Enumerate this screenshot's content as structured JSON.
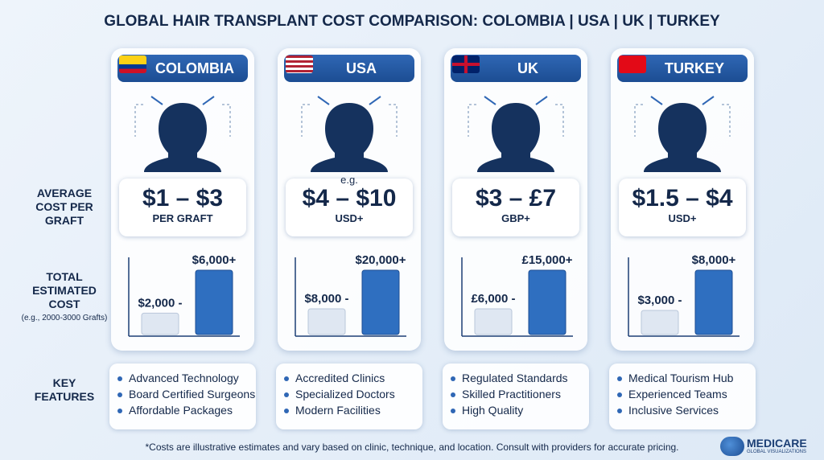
{
  "title": "GLOBAL HAIR TRANSPLANT COST COMPARISON: COLOMBIA | USA | UK | TURKEY",
  "row_labels": {
    "average": "AVERAGE COST PER GRAFT",
    "total": "TOTAL ESTIMATED COST",
    "total_note": "(e.g., 2000-3000 Grafts)",
    "features": "KEY FEATURES"
  },
  "countries": [
    {
      "name": "COLOMBIA",
      "price": "$1 – $3",
      "price_note": "PER GRAFT",
      "total": {
        "values": [
          2000,
          6000
        ],
        "value_labels": [
          "$2,000 -",
          "$6,000+"
        ]
      },
      "features": [
        "Advanced Technology",
        "Board Certified Surgeons",
        "Affordable Packages"
      ]
    },
    {
      "name": "USA",
      "example": "e.g.",
      "price": "$4 – $10",
      "price_note": "USD+",
      "total": {
        "values": [
          8000,
          20000
        ],
        "value_labels": [
          "$8,000 -",
          "$20,000+"
        ]
      },
      "features": [
        "Accredited Clinics",
        "Specialized Doctors",
        "Modern Facilities"
      ]
    },
    {
      "name": "UK",
      "price": "$3 – £7",
      "price_note": "GBP+",
      "total": {
        "values": [
          6000,
          15000
        ],
        "value_labels": [
          "£6,000 -",
          "£15,000+"
        ]
      },
      "features": [
        "Regulated Standards",
        "Skilled Practitioners",
        "High Quality"
      ]
    },
    {
      "name": "TURKEY",
      "price": "$1.5 – $4",
      "price_note": "USD+",
      "total": {
        "values": [
          3000,
          8000
        ],
        "value_labels": [
          "$3,000 -",
          "$8,000+"
        ]
      },
      "features": [
        "Medical Tourism Hub",
        "Experienced Teams",
        "Inclusive Services"
      ]
    }
  ],
  "footnote": "*Costs are illustrative estimates and vary based on clinic, technique, and location. Consult with providers for accurate pricing.",
  "logo": {
    "name": "MEDICARE",
    "tagline": "GLOBAL VISUALIZATIONS"
  }
}
